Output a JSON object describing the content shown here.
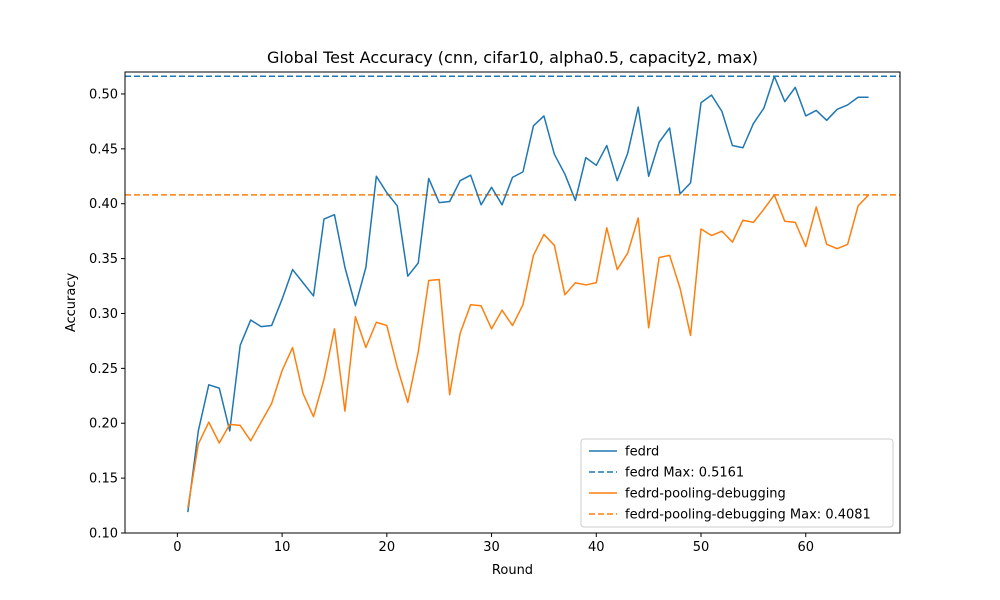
{
  "chart_data": {
    "type": "line",
    "title": "Global Test Accuracy (cnn, cifar10, alpha0.5, capacity2, max)",
    "xlabel": "Round",
    "ylabel": "Accuracy",
    "xlim": [
      -5,
      69
    ],
    "ylim": [
      0.1,
      0.52
    ],
    "xticks": [
      0,
      10,
      20,
      30,
      40,
      50,
      60
    ],
    "yticks": [
      0.1,
      0.15,
      0.2,
      0.25,
      0.3,
      0.35,
      0.4,
      0.45,
      0.5
    ],
    "x": [
      1,
      2,
      3,
      4,
      5,
      6,
      7,
      8,
      9,
      10,
      11,
      12,
      13,
      14,
      15,
      16,
      17,
      18,
      19,
      20,
      21,
      22,
      23,
      24,
      25,
      26,
      27,
      28,
      29,
      30,
      31,
      32,
      33,
      34,
      35,
      36,
      37,
      38,
      39,
      40,
      41,
      42,
      43,
      44,
      45,
      46,
      47,
      48,
      49,
      50,
      51,
      52,
      53,
      54,
      55,
      56,
      57,
      58,
      59,
      60,
      61,
      62,
      63,
      64,
      65,
      66
    ],
    "series": [
      {
        "name": "fedrd",
        "color": "#1f77b4",
        "values": [
          0.119,
          0.193,
          0.235,
          0.232,
          0.193,
          0.271,
          0.294,
          0.288,
          0.289,
          0.313,
          0.34,
          0.328,
          0.316,
          0.386,
          0.39,
          0.342,
          0.307,
          0.342,
          0.425,
          0.41,
          0.398,
          0.334,
          0.346,
          0.423,
          0.401,
          0.402,
          0.421,
          0.426,
          0.399,
          0.415,
          0.399,
          0.424,
          0.429,
          0.471,
          0.48,
          0.445,
          0.427,
          0.403,
          0.442,
          0.435,
          0.453,
          0.421,
          0.446,
          0.488,
          0.425,
          0.456,
          0.469,
          0.409,
          0.419,
          0.492,
          0.499,
          0.484,
          0.453,
          0.451,
          0.473,
          0.487,
          0.516,
          0.493,
          0.506,
          0.48,
          0.485,
          0.476,
          0.486,
          0.49,
          0.497,
          0.497
        ]
      },
      {
        "name": "fedrd-pooling-debugging",
        "color": "#ff7f0e",
        "values": [
          0.123,
          0.181,
          0.201,
          0.182,
          0.199,
          0.198,
          0.184,
          0.201,
          0.218,
          0.248,
          0.269,
          0.227,
          0.206,
          0.24,
          0.286,
          0.211,
          0.297,
          0.269,
          0.292,
          0.289,
          0.251,
          0.219,
          0.265,
          0.33,
          0.331,
          0.226,
          0.282,
          0.308,
          0.307,
          0.286,
          0.303,
          0.289,
          0.308,
          0.353,
          0.372,
          0.362,
          0.317,
          0.328,
          0.326,
          0.328,
          0.378,
          0.34,
          0.355,
          0.387,
          0.287,
          0.351,
          0.353,
          0.323,
          0.28,
          0.377,
          0.371,
          0.375,
          0.365,
          0.385,
          0.383,
          0.395,
          0.408,
          0.384,
          0.383,
          0.361,
          0.397,
          0.363,
          0.359,
          0.363,
          0.398,
          0.408
        ]
      }
    ],
    "hlines": [
      {
        "value": 0.5161,
        "color": "#1f77b4",
        "style": "dashed"
      },
      {
        "value": 0.4081,
        "color": "#ff7f0e",
        "style": "dashed"
      }
    ],
    "legend": {
      "placement": "lower-right",
      "entries": [
        {
          "label": "fedrd",
          "color": "#1f77b4",
          "style": "solid"
        },
        {
          "label": "fedrd Max: 0.5161",
          "color": "#1f77b4",
          "style": "dashed"
        },
        {
          "label": "fedrd-pooling-debugging",
          "color": "#ff7f0e",
          "style": "solid"
        },
        {
          "label": "fedrd-pooling-debugging Max: 0.4081",
          "color": "#ff7f0e",
          "style": "dashed"
        }
      ]
    },
    "grid": false
  }
}
